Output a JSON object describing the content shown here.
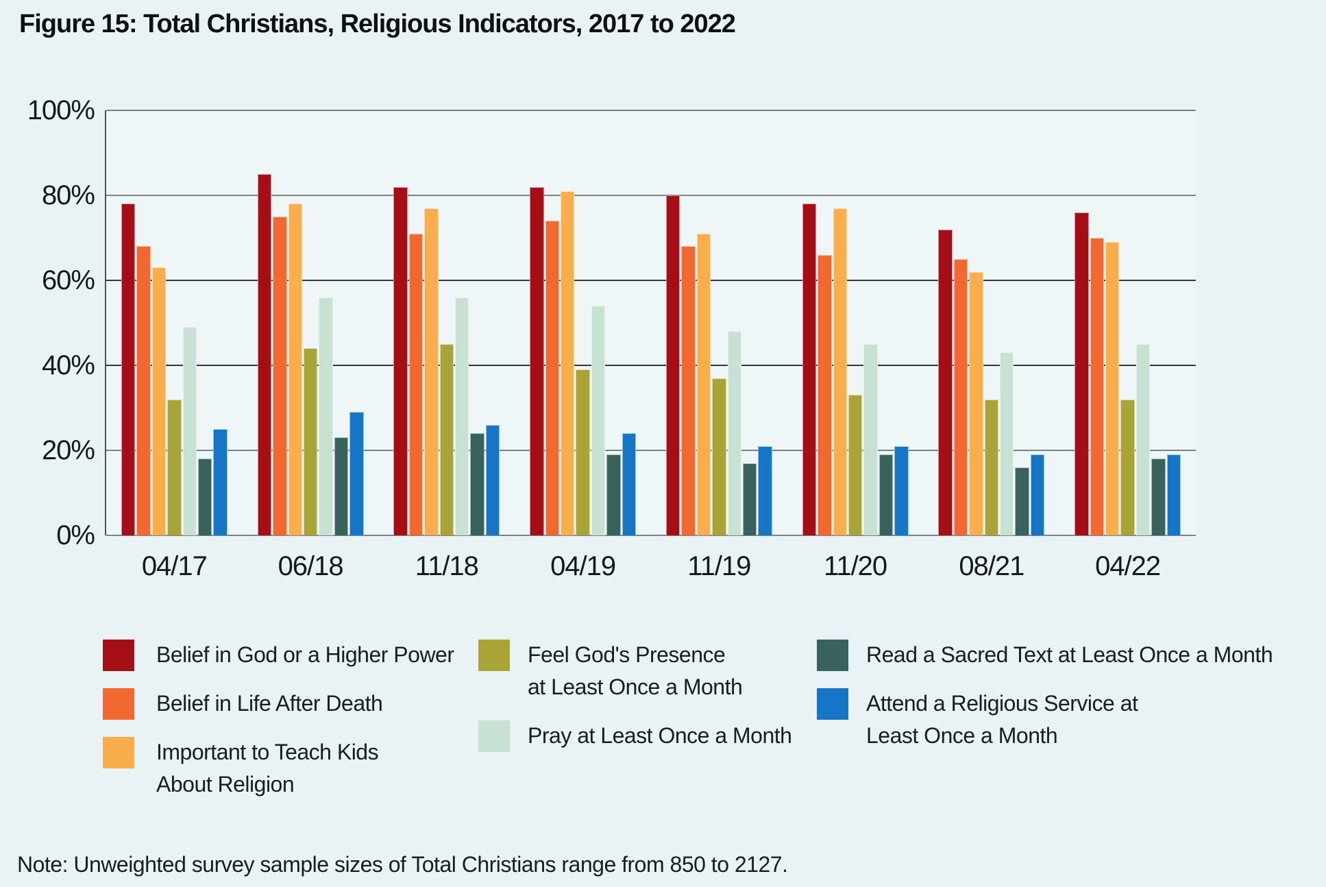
{
  "title": "Figure 15: Total Christians, Religious Indicators, 2017 to 2022",
  "note": "Note: Unweighted survey sample sizes of Total Christians range from 850 to 2127.",
  "colors": {
    "background": "#E9F3F5",
    "plot_background": "#EFF6F8",
    "grid_major": "#79838A",
    "grid_dark": "#30383D",
    "text": "#15191C"
  },
  "chart_data": {
    "type": "bar",
    "title": "Figure 15: Total Christians, Religious Indicators, 2017 to 2022",
    "xlabel": "",
    "ylabel": "",
    "ylim": [
      0,
      100
    ],
    "grid": true,
    "legend_position": "bottom",
    "yticks": [
      {
        "value": 0,
        "label": "0%"
      },
      {
        "value": 20,
        "label": "20%"
      },
      {
        "value": 40,
        "label": "40%"
      },
      {
        "value": 60,
        "label": "60%"
      },
      {
        "value": 80,
        "label": "80%"
      },
      {
        "value": 100,
        "label": "100%"
      }
    ],
    "categories": [
      "04/17",
      "06/18",
      "11/18",
      "04/19",
      "11/19",
      "11/20",
      "08/21",
      "04/22"
    ],
    "series": [
      {
        "name": "Belief in God or a Higher Power",
        "color": "#A50E15",
        "values": [
          78,
          85,
          82,
          82,
          80,
          78,
          72,
          76
        ]
      },
      {
        "name": "Belief in Life After Death",
        "color": "#F2682F",
        "values": [
          68,
          75,
          71,
          74,
          68,
          66,
          65,
          70
        ]
      },
      {
        "name": "Important to Teach Kids About Religion",
        "color": "#F9AE4B",
        "values": [
          63,
          78,
          77,
          81,
          71,
          77,
          62,
          69
        ]
      },
      {
        "name": "Feel God's Presence at Least Once a Month",
        "color": "#A8A436",
        "values": [
          32,
          44,
          45,
          39,
          37,
          33,
          32,
          32
        ]
      },
      {
        "name": "Pray at Least Once a Month",
        "color": "#C7E2D3",
        "values": [
          49,
          56,
          56,
          54,
          48,
          45,
          43,
          45
        ]
      },
      {
        "name": "Read a Sacred Text at Least Once a Month",
        "color": "#3A625C",
        "values": [
          18,
          23,
          24,
          19,
          17,
          19,
          16,
          18
        ]
      },
      {
        "name": "Attend a Religious Service at Least Once a Month",
        "color": "#1476C4",
        "values": [
          25,
          29,
          26,
          24,
          21,
          21,
          19,
          19
        ]
      }
    ]
  },
  "legend": {
    "columns": [
      [
        {
          "series_index": 0,
          "lines": [
            "Belief in God or a Higher Power"
          ]
        },
        {
          "series_index": 1,
          "lines": [
            "Belief in Life After Death"
          ]
        },
        {
          "series_index": 2,
          "lines": [
            "Important to Teach Kids",
            "About Religion"
          ]
        }
      ],
      [
        {
          "series_index": 3,
          "lines": [
            "Feel God's Presence",
            "at Least Once a Month"
          ]
        },
        {
          "series_index": 4,
          "lines": [
            "Pray at Least Once a Month"
          ]
        }
      ],
      [
        {
          "series_index": 5,
          "lines": [
            "Read a Sacred Text at Least Once a Month"
          ]
        },
        {
          "series_index": 6,
          "lines": [
            "Attend a Religious Service at",
            "Least Once a Month"
          ]
        }
      ]
    ]
  }
}
